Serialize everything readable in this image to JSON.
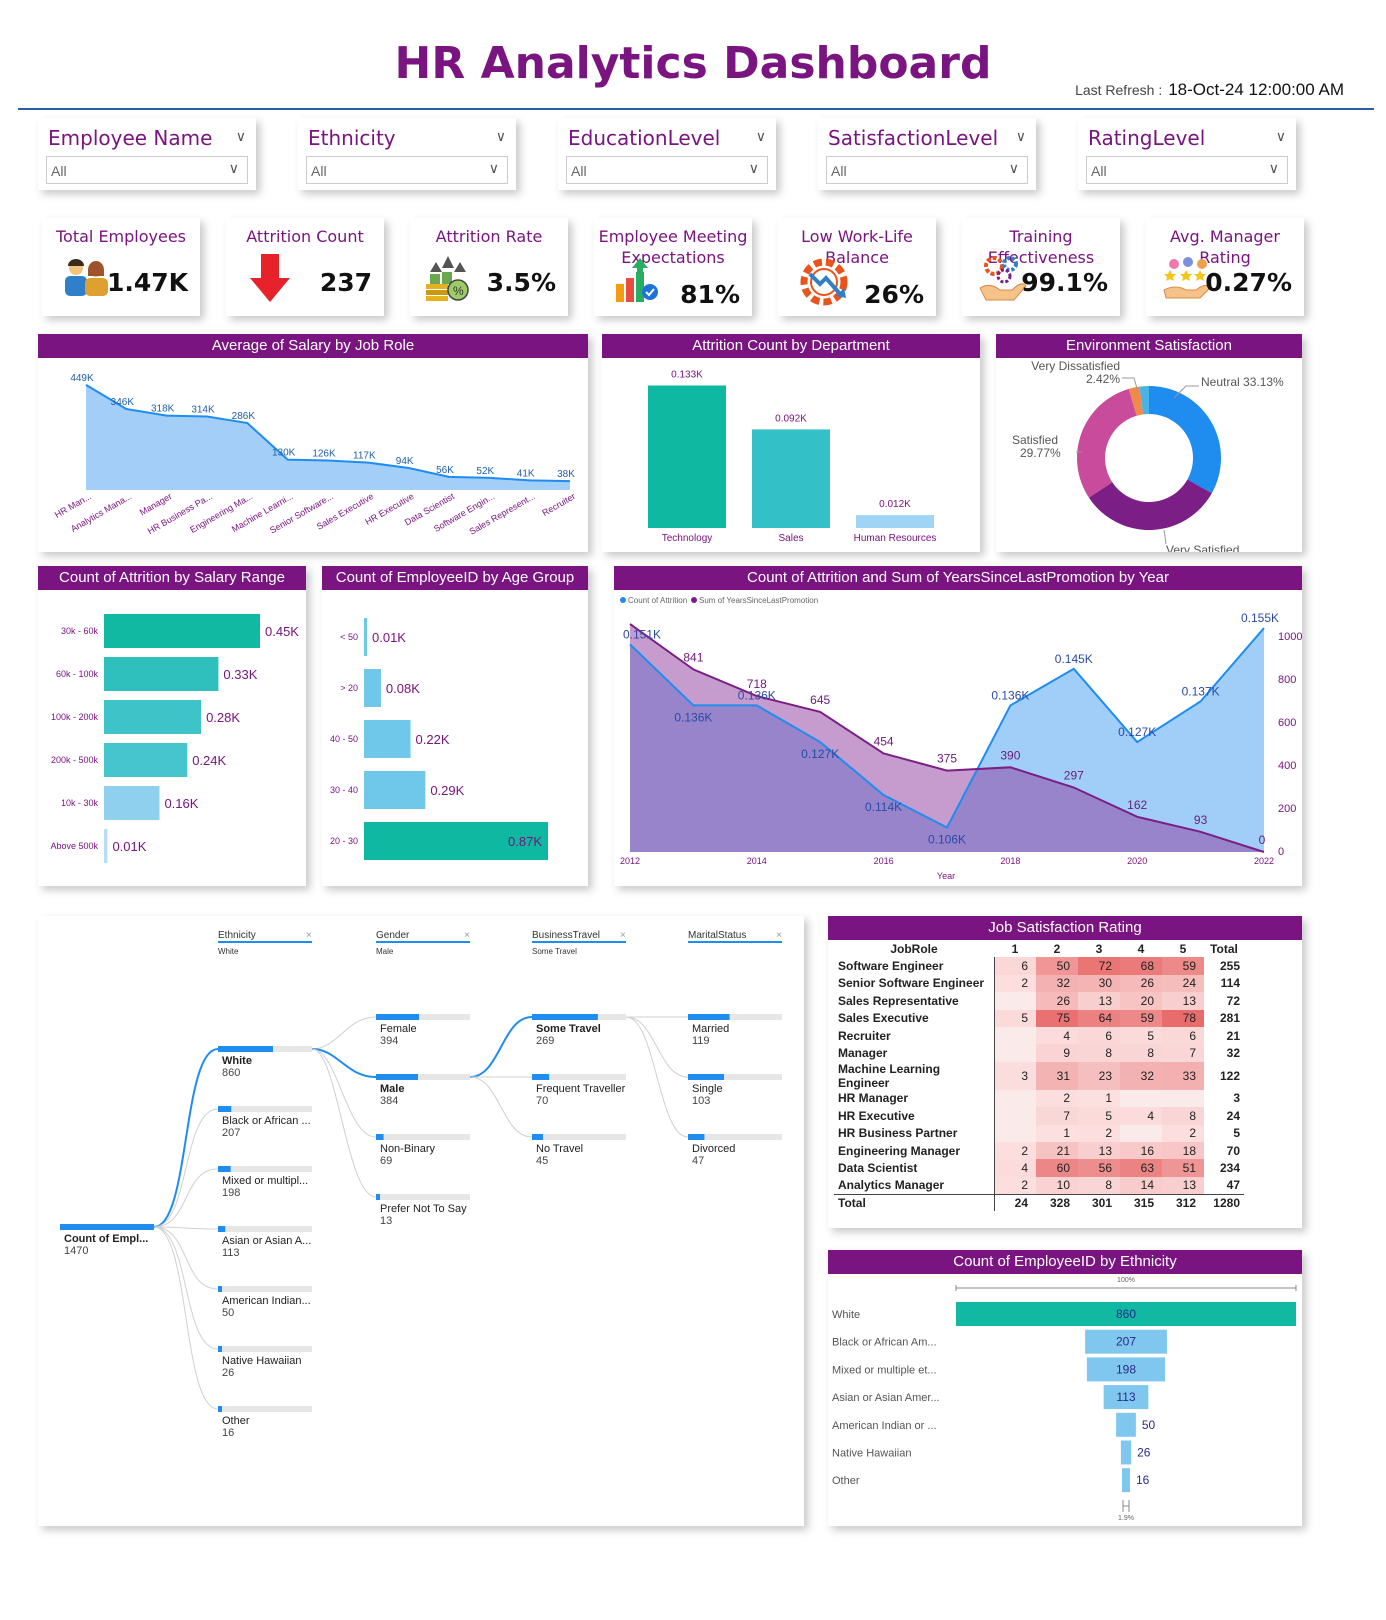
{
  "header": {
    "title": "HR Analytics Dashboard",
    "refresh_label": "Last Refresh :",
    "refresh_value": "18-Oct-24 12:00:00 AM"
  },
  "slicers": [
    {
      "label": "Employee Name",
      "value": "All"
    },
    {
      "label": "Ethnicity",
      "value": "All"
    },
    {
      "label": "EducationLevel",
      "value": "All"
    },
    {
      "label": "SatisfactionLevel",
      "value": "All"
    },
    {
      "label": "RatingLevel",
      "value": "All"
    }
  ],
  "kpis": [
    {
      "title": "Total Employees",
      "value": "1.47K",
      "icon": "people-icon"
    },
    {
      "title": "Attrition Count",
      "value": "237",
      "icon": "down-arrow-icon"
    },
    {
      "title": "Attrition Rate",
      "value": "3.5%",
      "icon": "money-growth-icon"
    },
    {
      "title": "Employee Meeting Expectations",
      "value": "81%",
      "icon": "growth-chart-icon"
    },
    {
      "title": "Low Work-Life Balance",
      "value": "26%",
      "icon": "gear-decline-icon"
    },
    {
      "title": "Training Effectiveness",
      "value": "99.1%",
      "icon": "gears-hand-icon"
    },
    {
      "title": "Avg. Manager Rating",
      "value": "0.27%",
      "icon": "rating-hand-icon"
    }
  ],
  "colors": {
    "accent": "#7a1480",
    "teal": "#0fb8a0",
    "lightblue": "#99c9f7",
    "blue": "#1f8cf0",
    "purple": "#7b1e86",
    "pink": "#c94b9b"
  },
  "chart_data": [
    {
      "id": "salary_by_role",
      "type": "area",
      "title": "Average of Salary by Job Role",
      "categories": [
        "HR Man...",
        "Analytics Mana...",
        "Manager",
        "HR Business Pa...",
        "Engineering Ma...",
        "Machine Learni...",
        "Senior Software...",
        "Sales Executive",
        "HR Executive",
        "Data Scientist",
        "Software Engin...",
        "Sales Represent...",
        "Recruiter"
      ],
      "values": [
        449,
        346,
        318,
        314,
        286,
        130,
        126,
        117,
        94,
        56,
        52,
        41,
        38
      ],
      "labels": [
        "449K",
        "346K",
        "318K",
        "314K",
        "286K",
        "130K",
        "126K",
        "117K",
        "94K",
        "56K",
        "52K",
        "41K",
        "38K"
      ],
      "ylim": [
        0,
        470
      ]
    },
    {
      "id": "attrition_by_dept",
      "type": "bar",
      "title": "Attrition Count by Department",
      "categories": [
        "Technology",
        "Sales",
        "Human Resources"
      ],
      "values": [
        0.133,
        0.092,
        0.012
      ],
      "labels": [
        "0.133K",
        "0.092K",
        "0.012K"
      ],
      "ylim": [
        0,
        0.14
      ]
    },
    {
      "id": "env_satisfaction",
      "type": "pie",
      "title": "Environment Satisfaction",
      "slices": [
        {
          "name": "Neutral",
          "value": 33.13,
          "label": "33.13%",
          "color": "#1f8cf0"
        },
        {
          "name": "Very Satisfied",
          "value": 32.58,
          "label": "32.58%",
          "color": "#7b1e86"
        },
        {
          "name": "Satisfied",
          "value": 29.77,
          "label": "29.77%",
          "color": "#c94b9b"
        },
        {
          "name": "Very Dissatisfied",
          "value": 2.42,
          "label": "2.42%",
          "color": "#f08a4b"
        },
        {
          "name": "",
          "value": 2.1,
          "label": "",
          "color": "#4ab3e6"
        }
      ]
    },
    {
      "id": "attrition_by_salary",
      "type": "bar",
      "title": "Count of Attrition by Salary Range",
      "categories": [
        "30k - 60k",
        "60k - 100k",
        "100k - 200k",
        "200k - 500k",
        "10k - 30k",
        "Above 500k"
      ],
      "values": [
        0.45,
        0.33,
        0.28,
        0.24,
        0.16,
        0.01
      ],
      "labels": [
        "0.45K",
        "0.33K",
        "0.28K",
        "0.24K",
        "0.16K",
        "0.01K"
      ]
    },
    {
      "id": "employees_by_age",
      "type": "bar",
      "title": "Count of EmployeeID by Age Group",
      "categories": [
        "< 50",
        "> 20",
        "40 - 50",
        "30 - 40",
        "20 - 30"
      ],
      "values": [
        0.01,
        0.08,
        0.22,
        0.29,
        0.87
      ],
      "labels": [
        "0.01K",
        "0.08K",
        "0.22K",
        "0.29K",
        "0.87K"
      ]
    },
    {
      "id": "attrition_promotion_by_year",
      "type": "area",
      "title": "Count of Attrition and Sum of YearsSinceLastPromotion by Year",
      "xlabel": "Year",
      "x": [
        2012,
        2013,
        2014,
        2015,
        2016,
        2017,
        2018,
        2019,
        2020,
        2021,
        2022
      ],
      "xticks": [
        "2012",
        "2014",
        "2016",
        "2018",
        "2020",
        "2022"
      ],
      "y2ticks": [
        "1000",
        "800",
        "600",
        "400",
        "200",
        "0"
      ],
      "series": [
        {
          "name": "Count of Attrition",
          "values": [
            0.151,
            0.136,
            0.136,
            0.127,
            0.114,
            0.106,
            0.136,
            0.145,
            0.127,
            0.137,
            0.155
          ],
          "labels": [
            "0.151K",
            "0.136K",
            "0.136K",
            "0.127K",
            "0.114K",
            "0.106K",
            "0.136K",
            "0.145K",
            "0.127K",
            "0.137K",
            "0.155K"
          ]
        },
        {
          "name": "Sum of YearsSinceLastPromotion",
          "values": [
            1050,
            841,
            718,
            645,
            454,
            375,
            390,
            297,
            162,
            93,
            0
          ],
          "labels": [
            "",
            "841",
            "718",
            "645",
            "454",
            "375",
            "390",
            "297",
            "162",
            "93",
            "0"
          ]
        }
      ]
    },
    {
      "id": "decomposition_tree",
      "type": "table",
      "levels": [
        {
          "field": "Ethnicity",
          "filter": "White"
        },
        {
          "field": "Gender",
          "filter": "Male"
        },
        {
          "field": "BusinessTravel",
          "filter": "Some Travel"
        },
        {
          "field": "MaritalStatus",
          "filter": ""
        }
      ],
      "root": {
        "name": "Count of Empl...",
        "value": "1470"
      },
      "ethnicity": [
        {
          "name": "White",
          "value": "860",
          "n": 860
        },
        {
          "name": "Black or African ...",
          "value": "207",
          "n": 207
        },
        {
          "name": "Mixed or multipl...",
          "value": "198",
          "n": 198
        },
        {
          "name": "Asian or Asian A...",
          "value": "113",
          "n": 113
        },
        {
          "name": "American Indian...",
          "value": "50",
          "n": 50
        },
        {
          "name": "Native Hawaiian",
          "value": "26",
          "n": 26
        },
        {
          "name": "Other",
          "value": "16",
          "n": 16
        }
      ],
      "gender": [
        {
          "name": "Female",
          "value": "394",
          "n": 394
        },
        {
          "name": "Male",
          "value": "384",
          "n": 384
        },
        {
          "name": "Non-Binary",
          "value": "69",
          "n": 69
        },
        {
          "name": "Prefer Not To Say",
          "value": "13",
          "n": 13
        }
      ],
      "travel": [
        {
          "name": "Some Travel",
          "value": "269",
          "n": 269
        },
        {
          "name": "Frequent Traveller",
          "value": "70",
          "n": 70
        },
        {
          "name": "No Travel",
          "value": "45",
          "n": 45
        }
      ],
      "marital": [
        {
          "name": "Married",
          "value": "119",
          "n": 119
        },
        {
          "name": "Single",
          "value": "103",
          "n": 103
        },
        {
          "name": "Divorced",
          "value": "47",
          "n": 47
        }
      ]
    },
    {
      "id": "job_satisfaction",
      "type": "heatmap",
      "title": "Job Satisfaction Rating",
      "row_header": "JobRole",
      "columns": [
        "1",
        "2",
        "3",
        "4",
        "5",
        "Total"
      ],
      "rows": [
        {
          "role": "Software Engineer",
          "cells": [
            "6",
            "50",
            "72",
            "68",
            "59"
          ],
          "total": "255"
        },
        {
          "role": "Senior Software Engineer",
          "cells": [
            "2",
            "32",
            "30",
            "26",
            "24"
          ],
          "total": "114"
        },
        {
          "role": "Sales Representative",
          "cells": [
            "",
            "26",
            "13",
            "20",
            "13"
          ],
          "total": "72"
        },
        {
          "role": "Sales Executive",
          "cells": [
            "5",
            "75",
            "64",
            "59",
            "78"
          ],
          "total": "281"
        },
        {
          "role": "Recruiter",
          "cells": [
            "",
            "4",
            "6",
            "5",
            "6"
          ],
          "total": "21"
        },
        {
          "role": "Manager",
          "cells": [
            "",
            "9",
            "8",
            "8",
            "7"
          ],
          "total": "32"
        },
        {
          "role": "Machine Learning Engineer",
          "cells": [
            "3",
            "31",
            "23",
            "32",
            "33"
          ],
          "total": "122"
        },
        {
          "role": "HR Manager",
          "cells": [
            "",
            "2",
            "1",
            "",
            ""
          ],
          "total": "3"
        },
        {
          "role": "HR Executive",
          "cells": [
            "",
            "7",
            "5",
            "4",
            "8"
          ],
          "total": "24"
        },
        {
          "role": "HR Business Partner",
          "cells": [
            "",
            "1",
            "2",
            "",
            "2"
          ],
          "total": "5"
        },
        {
          "role": "Engineering Manager",
          "cells": [
            "2",
            "21",
            "13",
            "16",
            "18"
          ],
          "total": "70"
        },
        {
          "role": "Data Scientist",
          "cells": [
            "4",
            "60",
            "56",
            "63",
            "51"
          ],
          "total": "234"
        },
        {
          "role": "Analytics Manager",
          "cells": [
            "2",
            "10",
            "8",
            "14",
            "13"
          ],
          "total": "47"
        }
      ],
      "totals_label": "Total",
      "totals": [
        "24",
        "328",
        "301",
        "315",
        "312",
        "1280"
      ]
    },
    {
      "id": "employees_by_ethnicity",
      "type": "bar",
      "title": "Count of EmployeeID by Ethnicity",
      "top_label": "100%",
      "bottom_label": "1.9%",
      "categories": [
        "White",
        "Black or African Am...",
        "Mixed or multiple et...",
        "Asian or Asian Amer...",
        "American Indian or ...",
        "Native Hawaiian",
        "Other"
      ],
      "values": [
        860,
        207,
        198,
        113,
        50,
        26,
        16
      ],
      "labels": [
        "860",
        "207",
        "198",
        "113",
        "50",
        "26",
        "16"
      ]
    }
  ]
}
